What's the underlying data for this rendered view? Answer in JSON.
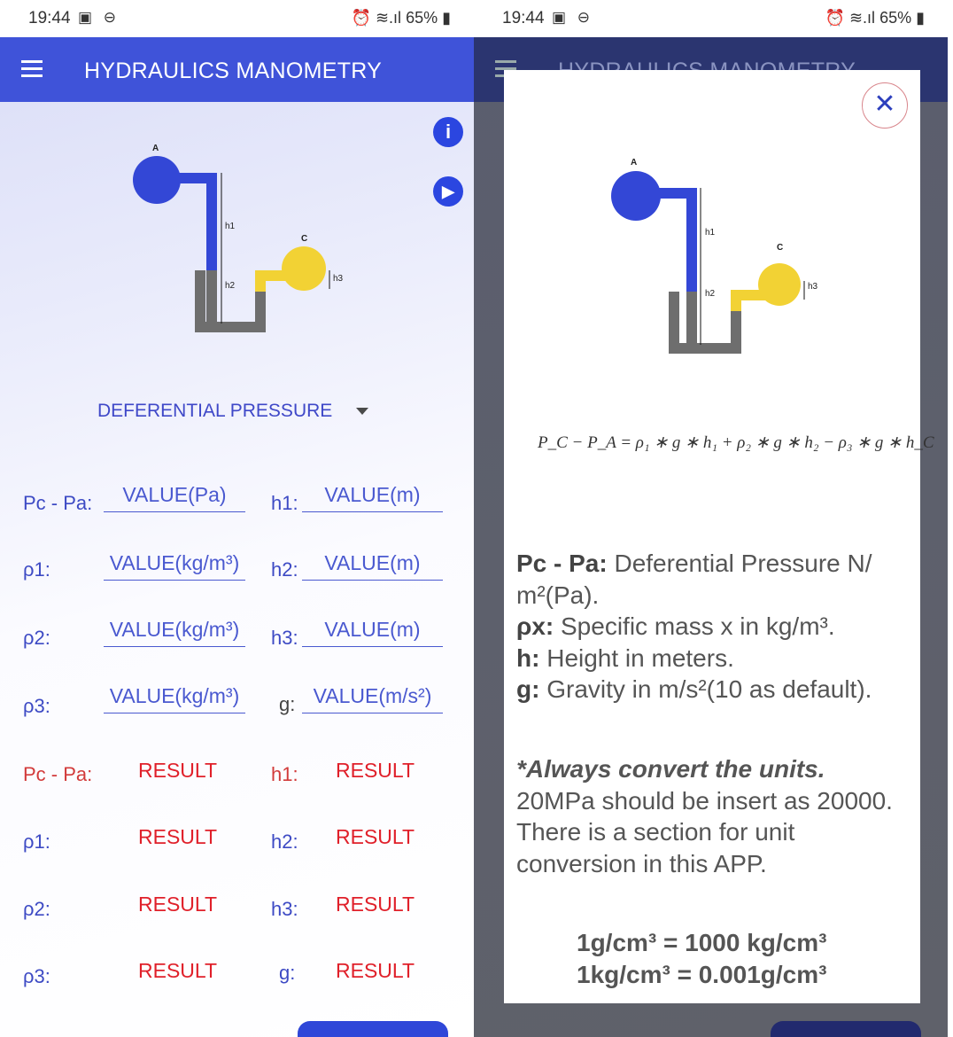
{
  "status": {
    "time": "19:44",
    "battery": "65%"
  },
  "app": {
    "title": "HYDRAULICS MANOMETRY",
    "info_icon": "info-icon",
    "play_icon": "play-icon"
  },
  "diagram": {
    "point_a": "A",
    "point_c": "C",
    "h1": "h1",
    "h2": "h2",
    "h3": "h3",
    "colors": {
      "fluid1": "#3347d6",
      "fluid2": "#6e6e6e",
      "fluid3": "#f2d234"
    }
  },
  "dropdown": {
    "selected": "DEFERENTIAL PRESSURE"
  },
  "inputs": {
    "rows": [
      {
        "left_label": "Pc - Pa:",
        "left_value": "VALUE(Pa)",
        "right_label": "h1:",
        "right_value": "VALUE(m)"
      },
      {
        "left_label": "ρ1:",
        "left_value": "VALUE(kg/m³)",
        "right_label": "h2:",
        "right_value": "VALUE(m)"
      },
      {
        "left_label": "ρ2:",
        "left_value": "VALUE(kg/m³)",
        "right_label": "h3:",
        "right_value": "VALUE(m)"
      },
      {
        "left_label": "ρ3:",
        "left_value": "VALUE(kg/m³)",
        "right_label": "g:",
        "right_value": "VALUE(m/s²)"
      }
    ]
  },
  "results": {
    "rows": [
      {
        "left_label": "Pc - Pa:",
        "left_value": "RESULT",
        "right_label": "h1:",
        "right_value": "RESULT"
      },
      {
        "left_label": "ρ1:",
        "left_value": "RESULT",
        "right_label": "h2:",
        "right_value": "RESULT"
      },
      {
        "left_label": "ρ2:",
        "left_value": "RESULT",
        "right_label": "h3:",
        "right_value": "RESULT"
      },
      {
        "left_label": "ρ3:",
        "left_value": "RESULT",
        "right_label": "g:",
        "right_value": "RESULT"
      }
    ]
  },
  "modal": {
    "close_icon": "close-icon",
    "formula": "P_C − P_A = ρ₁ ∗ g ∗ h₁ + ρ₂ ∗ g ∗ h₂ − ρ₃ ∗ g ∗ h_C",
    "desc": [
      {
        "term": "Pc - Pa:",
        "text": " Deferential Pressure N/ m²(Pa)."
      },
      {
        "term": "ρx:",
        "text": " Specific mass x in kg/m³."
      },
      {
        "term": "h:",
        "text": " Height in meters."
      },
      {
        "term": "g:",
        "text": " Gravity in m/s²(10 as default)."
      }
    ],
    "note_emphasis": "*Always convert the units.",
    "note_text": "20MPa should be insert as 20000. There is a section for unit conversion in this APP.",
    "conversions": [
      "1g/cm³ = 1000 kg/cm³",
      "1kg/cm³ = 0.001g/cm³"
    ]
  }
}
